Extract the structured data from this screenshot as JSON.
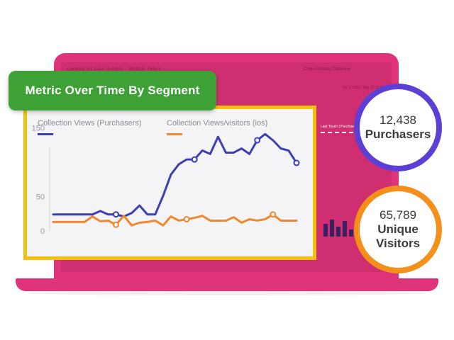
{
  "background_window": {
    "title_left": "Looking for Data Insights - Multiple Filters",
    "title_right": "Cross-Industry DataView",
    "date_range": "Oct 1 2019 - Mar 15 2020",
    "dash_label": "Last Touch | Purchasers"
  },
  "title_badge": {
    "text": "Metric Over Time By Segment",
    "color": "#3ea135"
  },
  "stats": {
    "purchasers": {
      "value": "12,438",
      "label": "Purchasers",
      "color": "#5e3fd6"
    },
    "visitors": {
      "value": "65,789",
      "label": "Unique",
      "label2": "Visitors",
      "color": "#f39019"
    }
  },
  "chart_data": {
    "type": "line",
    "title": "",
    "xlabel": "",
    "ylabel": "",
    "ylim": [
      0,
      165
    ],
    "y_ticks": [
      0,
      50,
      150
    ],
    "grid": false,
    "legend_placement": "top",
    "x": [
      0,
      1,
      2,
      3,
      4,
      5,
      6,
      7,
      8,
      9,
      10,
      11,
      12,
      13,
      14,
      15,
      16,
      17,
      18,
      19,
      20,
      21,
      22,
      23,
      24,
      25,
      26,
      27,
      28,
      29,
      30,
      31
    ],
    "series": [
      {
        "name": "Collection Views (Purchasers)",
        "color": "#3d3db4",
        "values": [
          24,
          24,
          24,
          24,
          24,
          24,
          29,
          24,
          24,
          21,
          26,
          37,
          24,
          24,
          51,
          82,
          97,
          104,
          104,
          117,
          112,
          137,
          114,
          114,
          120,
          112,
          132,
          141,
          132,
          120,
          117,
          99
        ],
        "markers": [
          8,
          18,
          26,
          31
        ]
      },
      {
        "name": "Collection Views/visitors (ios)",
        "color": "#f0882e",
        "values": [
          13,
          13,
          13,
          13,
          13,
          21,
          14,
          15,
          9,
          22,
          8,
          12,
          13,
          15,
          8,
          21,
          15,
          17,
          19,
          22,
          15,
          15,
          15,
          20,
          12,
          17,
          15,
          17,
          24,
          15,
          15,
          15
        ],
        "markers": [
          8,
          17,
          28
        ]
      }
    ]
  }
}
